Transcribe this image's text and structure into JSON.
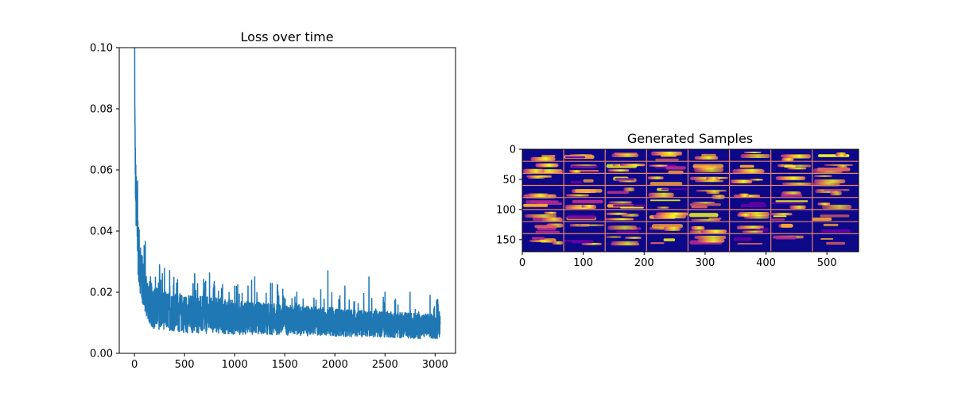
{
  "chart_data": [
    {
      "type": "line",
      "title": "Loss over time",
      "xlabel": "",
      "ylabel": "",
      "xlim": [
        -152,
        3204
      ],
      "ylim": [
        0,
        0.1
      ],
      "xticks": [
        0,
        500,
        1000,
        1500,
        2000,
        2500,
        3000
      ],
      "xtick_labels": [
        "0",
        "500",
        "1000",
        "1500",
        "2000",
        "2500",
        "3000"
      ],
      "yticks": [
        0,
        0.02,
        0.04,
        0.06,
        0.08,
        0.1
      ],
      "ytick_labels": [
        "0.00",
        "0.02",
        "0.04",
        "0.06",
        "0.08",
        "0.10"
      ],
      "grid": false,
      "series_color": "#1f77b4",
      "series": [
        {
          "x": [
            0,
            5,
            10,
            15,
            20,
            25,
            30,
            40,
            50,
            60,
            80,
            100,
            130,
            160,
            200,
            250,
            300,
            400,
            500,
            600,
            700,
            800,
            900,
            1000,
            1100,
            1200,
            1250,
            1300,
            1400,
            1500,
            1600,
            1700,
            1800,
            1900,
            1930,
            2000,
            2100,
            2200,
            2300,
            2350,
            2400,
            2500,
            2600,
            2700,
            2800,
            2900,
            3000,
            3050
          ],
          "y": [
            0.1,
            0.072,
            0.058,
            0.05,
            0.046,
            0.042,
            0.039,
            0.034,
            0.03,
            0.027,
            0.023,
            0.021,
            0.018,
            0.016,
            0.015,
            0.0145,
            0.014,
            0.0135,
            0.013,
            0.0128,
            0.0125,
            0.0123,
            0.012,
            0.0118,
            0.0116,
            0.0115,
            0.0115,
            0.0113,
            0.0111,
            0.011,
            0.0108,
            0.0106,
            0.0105,
            0.0104,
            0.0106,
            0.0102,
            0.01,
            0.0099,
            0.0097,
            0.0098,
            0.0096,
            0.0095,
            0.0093,
            0.0092,
            0.009,
            0.0089,
            0.0088,
            0.0088
          ],
          "noise": [
            0.0,
            0.008,
            0.01,
            0.012,
            0.012,
            0.012,
            0.012,
            0.011,
            0.01,
            0.009,
            0.009,
            0.008,
            0.008,
            0.008,
            0.008,
            0.0075,
            0.007,
            0.007,
            0.007,
            0.007,
            0.0068,
            0.0066,
            0.0064,
            0.0062,
            0.006,
            0.006,
            0.006,
            0.0058,
            0.0057,
            0.0056,
            0.0055,
            0.0054,
            0.0053,
            0.0052,
            0.0052,
            0.0051,
            0.005,
            0.005,
            0.0049,
            0.0049,
            0.0048,
            0.0048,
            0.0047,
            0.0047,
            0.0046,
            0.0046,
            0.0045,
            0.0045
          ],
          "spikes": [
            [
              160,
              0.025
            ],
            [
              250,
              0.029
            ],
            [
              420,
              0.023
            ],
            [
              600,
              0.026
            ],
            [
              800,
              0.022
            ],
            [
              1000,
              0.022
            ],
            [
              1200,
              0.025
            ],
            [
              1480,
              0.021
            ],
            [
              1620,
              0.02
            ],
            [
              1930,
              0.027
            ],
            [
              2100,
              0.022
            ],
            [
              2340,
              0.025
            ],
            [
              2500,
              0.02
            ],
            [
              2750,
              0.02
            ],
            [
              2950,
              0.019
            ],
            [
              3030,
              0.016
            ]
          ]
        }
      ]
    },
    {
      "type": "heatmap",
      "title": "Generated Samples",
      "xlim": [
        0,
        552
      ],
      "ylim": [
        170,
        0
      ],
      "xticks": [
        0,
        100,
        200,
        300,
        400,
        500
      ],
      "xtick_labels": [
        "0",
        "100",
        "200",
        "300",
        "400",
        "500"
      ],
      "yticks": [
        0,
        50,
        100,
        150
      ],
      "ytick_labels": [
        "0",
        "50",
        "100",
        "150"
      ],
      "grid_cols": 8,
      "grid_rows": 8,
      "cell_w": 68,
      "cell_h": 20,
      "divider_color": "#e8826a",
      "colormap": [
        "#0d0887",
        "#6a00a8",
        "#b12a90",
        "#e16462",
        "#fca636",
        "#f0f921"
      ]
    }
  ]
}
